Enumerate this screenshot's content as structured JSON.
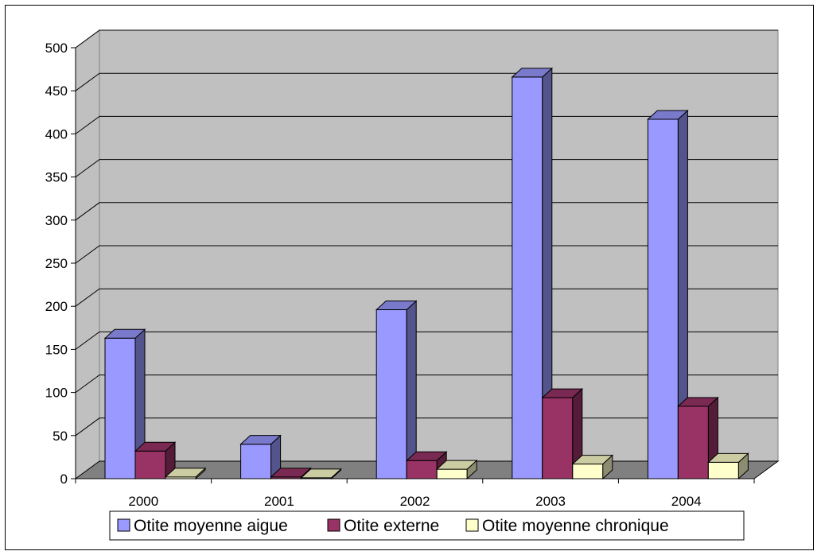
{
  "chart_data": {
    "type": "bar",
    "title": "",
    "xlabel": "",
    "ylabel": "",
    "categories": [
      "2000",
      "2001",
      "2002",
      "2003",
      "2004"
    ],
    "series": [
      {
        "name": "Otite moyenne aigue",
        "values": [
          163,
          40,
          196,
          466,
          417
        ],
        "color": "#9999ff"
      },
      {
        "name": "Otite externe",
        "values": [
          32,
          2,
          21,
          94,
          84
        ],
        "color": "#993366"
      },
      {
        "name": "Otite moyenne chronique",
        "values": [
          2,
          1,
          11,
          17,
          19
        ],
        "color": "#ffffcc"
      }
    ],
    "ylim": [
      0,
      500
    ],
    "yticks": [
      "0",
      "50",
      "100",
      "150",
      "200",
      "250",
      "300",
      "350",
      "400",
      "450",
      "500"
    ],
    "grid": true,
    "legend_position": "bottom",
    "style": "3d-clustered-column",
    "wall_color": "#c0c0c0",
    "floor_color": "#808080"
  }
}
